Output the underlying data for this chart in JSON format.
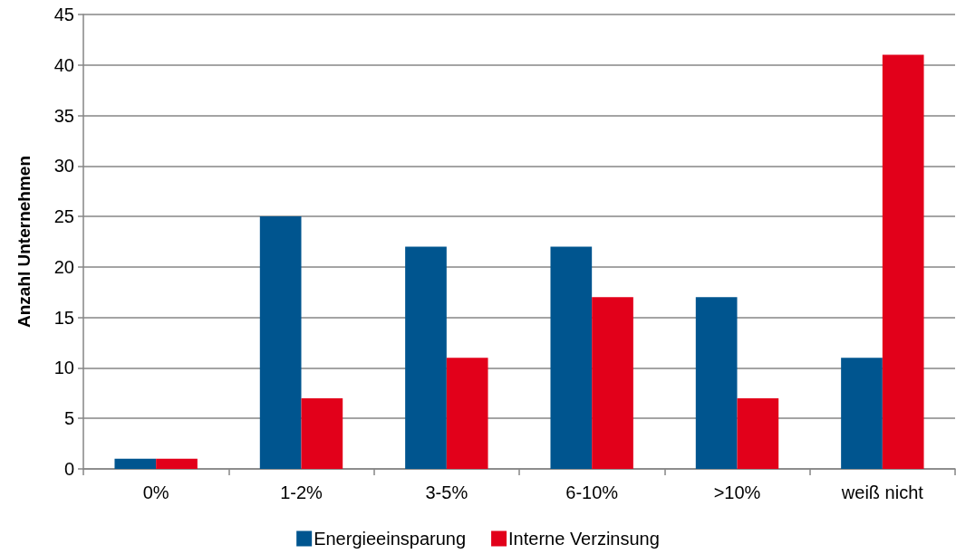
{
  "chart_data": {
    "type": "bar",
    "ylabel": "Anzahl Unternehmen",
    "categories": [
      "0%",
      "1-2%",
      "3-5%",
      "6-10%",
      ">10%",
      "weiß nicht"
    ],
    "series": [
      {
        "name": "Energieeinsparung",
        "color": "#00558f",
        "values": [
          1,
          25,
          22,
          22,
          17,
          11
        ]
      },
      {
        "name": "Interne Verzinsung",
        "color": "#e2001a",
        "values": [
          1,
          7,
          11,
          17,
          7,
          41
        ]
      }
    ],
    "ylim": [
      0,
      45
    ],
    "yticks": [
      0,
      5,
      10,
      15,
      20,
      25,
      30,
      35,
      40,
      45
    ],
    "grid": "y",
    "legend": "bottom"
  }
}
